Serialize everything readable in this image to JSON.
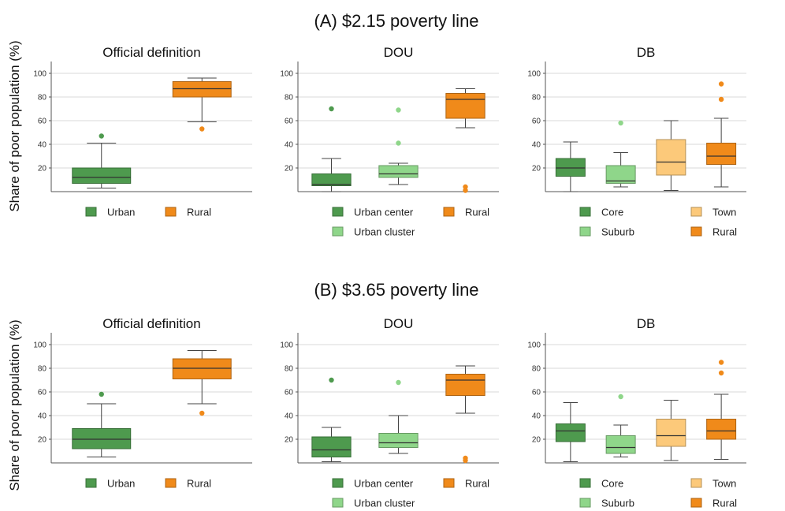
{
  "figure": {
    "ylabel": "Share of poor population (%)",
    "colors": {
      "Urban": "#4e9a4e",
      "Urban center": "#4e9a4e",
      "Core": "#4e9a4e",
      "Urban cluster": "#8fd68a",
      "Suburb": "#8fd68a",
      "Town": "#fcc97a",
      "Rural": "#f08a1a"
    },
    "sections": [
      {
        "title": "(A) $2.15 poverty line"
      },
      {
        "title": "(B) $3.65 poverty line"
      }
    ],
    "y_ticks": [
      "20",
      "40",
      "60",
      "80",
      "100"
    ]
  },
  "chart_data": [
    {
      "type": "box",
      "section": "(A) $2.15 poverty line",
      "title": "Official definition",
      "ylabel": "Share of poor population (%)",
      "ylim": [
        0,
        110
      ],
      "grid": true,
      "legend": [
        "Urban",
        "Rural"
      ],
      "series": [
        {
          "name": "Urban",
          "min": 3,
          "q1": 7,
          "median": 12,
          "q3": 20,
          "max": 41,
          "outliers": [
            47
          ]
        },
        {
          "name": "Rural",
          "min": 59,
          "q1": 80,
          "median": 87,
          "q3": 93,
          "max": 96,
          "outliers": [
            53
          ]
        }
      ]
    },
    {
      "type": "box",
      "section": "(A) $2.15 poverty line",
      "title": "DOU",
      "ylim": [
        0,
        110
      ],
      "grid": true,
      "legend": [
        "Urban center",
        "Rural",
        "Urban cluster"
      ],
      "series": [
        {
          "name": "Urban center",
          "min": 0,
          "q1": 5,
          "median": 6,
          "q3": 15,
          "max": 28,
          "outliers": [
            70
          ]
        },
        {
          "name": "Urban cluster",
          "min": 6,
          "q1": 12,
          "median": 15,
          "q3": 22,
          "max": 24,
          "outliers": [
            41,
            69
          ]
        },
        {
          "name": "Rural",
          "min": 54,
          "q1": 62,
          "median": 78,
          "q3": 83,
          "max": 87,
          "outliers": [
            1,
            4
          ]
        }
      ]
    },
    {
      "type": "box",
      "section": "(A) $2.15 poverty line",
      "title": "DB",
      "ylim": [
        0,
        110
      ],
      "grid": true,
      "legend": [
        "Core",
        "Town",
        "Suburb",
        "Rural"
      ],
      "series": [
        {
          "name": "Core",
          "min": 0,
          "q1": 13,
          "median": 20,
          "q3": 28,
          "max": 42,
          "outliers": []
        },
        {
          "name": "Suburb",
          "min": 4,
          "q1": 7,
          "median": 9,
          "q3": 22,
          "max": 33,
          "outliers": [
            58
          ]
        },
        {
          "name": "Town",
          "min": 1,
          "q1": 14,
          "median": 25,
          "q3": 44,
          "max": 60,
          "outliers": []
        },
        {
          "name": "Rural",
          "min": 4,
          "q1": 23,
          "median": 30,
          "q3": 41,
          "max": 62,
          "outliers": [
            78,
            91
          ]
        }
      ]
    },
    {
      "type": "box",
      "section": "(B) $3.65 poverty line",
      "title": "Official definition",
      "ylabel": "Share of poor population (%)",
      "ylim": [
        0,
        110
      ],
      "grid": true,
      "legend": [
        "Urban",
        "Rural"
      ],
      "series": [
        {
          "name": "Urban",
          "min": 5,
          "q1": 12,
          "median": 20,
          "q3": 29,
          "max": 50,
          "outliers": [
            58
          ]
        },
        {
          "name": "Rural",
          "min": 50,
          "q1": 71,
          "median": 80,
          "q3": 88,
          "max": 95,
          "outliers": [
            42
          ]
        }
      ]
    },
    {
      "type": "box",
      "section": "(B) $3.65 poverty line",
      "title": "DOU",
      "ylim": [
        0,
        110
      ],
      "grid": true,
      "legend": [
        "Urban center",
        "Rural",
        "Urban cluster"
      ],
      "series": [
        {
          "name": "Urban center",
          "min": 1,
          "q1": 5,
          "median": 11,
          "q3": 22,
          "max": 30,
          "outliers": [
            70
          ]
        },
        {
          "name": "Urban cluster",
          "min": 8,
          "q1": 13,
          "median": 17,
          "q3": 25,
          "max": 40,
          "outliers": [
            68
          ]
        },
        {
          "name": "Rural",
          "min": 42,
          "q1": 57,
          "median": 70,
          "q3": 75,
          "max": 82,
          "outliers": [
            2,
            4
          ]
        }
      ]
    },
    {
      "type": "box",
      "section": "(B) $3.65 poverty line",
      "title": "DB",
      "ylim": [
        0,
        110
      ],
      "grid": true,
      "legend": [
        "Core",
        "Town",
        "Suburb",
        "Rural"
      ],
      "series": [
        {
          "name": "Core",
          "min": 1,
          "q1": 18,
          "median": 27,
          "q3": 33,
          "max": 51,
          "outliers": []
        },
        {
          "name": "Suburb",
          "min": 5,
          "q1": 8,
          "median": 13,
          "q3": 23,
          "max": 32,
          "outliers": [
            56
          ]
        },
        {
          "name": "Town",
          "min": 2,
          "q1": 14,
          "median": 23,
          "q3": 37,
          "max": 53,
          "outliers": []
        },
        {
          "name": "Rural",
          "min": 3,
          "q1": 20,
          "median": 27,
          "q3": 37,
          "max": 58,
          "outliers": [
            76,
            85
          ]
        }
      ]
    }
  ]
}
